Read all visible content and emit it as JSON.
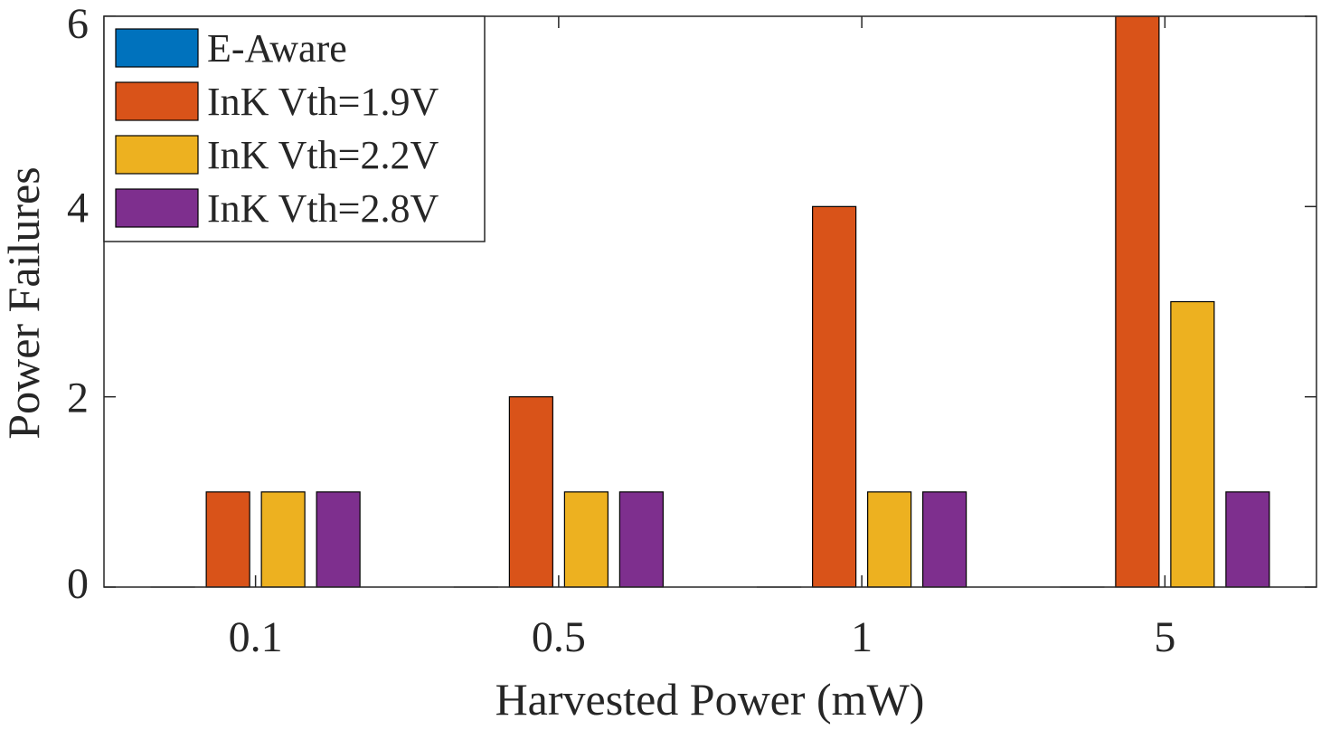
{
  "chart_data": {
    "type": "bar",
    "categories": [
      "0.1",
      "0.5",
      "1",
      "5"
    ],
    "series": [
      {
        "name": "E-Aware",
        "values": [
          0,
          0,
          0,
          0
        ],
        "color": "#0072BD"
      },
      {
        "name": "InK Vth=1.9V",
        "values": [
          1,
          2,
          4,
          6
        ],
        "color": "#D95319"
      },
      {
        "name": "InK Vth=2.2V",
        "values": [
          1,
          1,
          1,
          3
        ],
        "color": "#EDB120"
      },
      {
        "name": "InK Vth=2.8V",
        "values": [
          1,
          1,
          1,
          1
        ],
        "color": "#7E2F8E"
      }
    ],
    "xlabel": "Harvested Power (mW)",
    "ylabel": "Power Failures",
    "ylim": [
      0,
      6
    ],
    "yticks": [
      0,
      2,
      4,
      6
    ],
    "grid": false,
    "legend_position": "top-left"
  }
}
